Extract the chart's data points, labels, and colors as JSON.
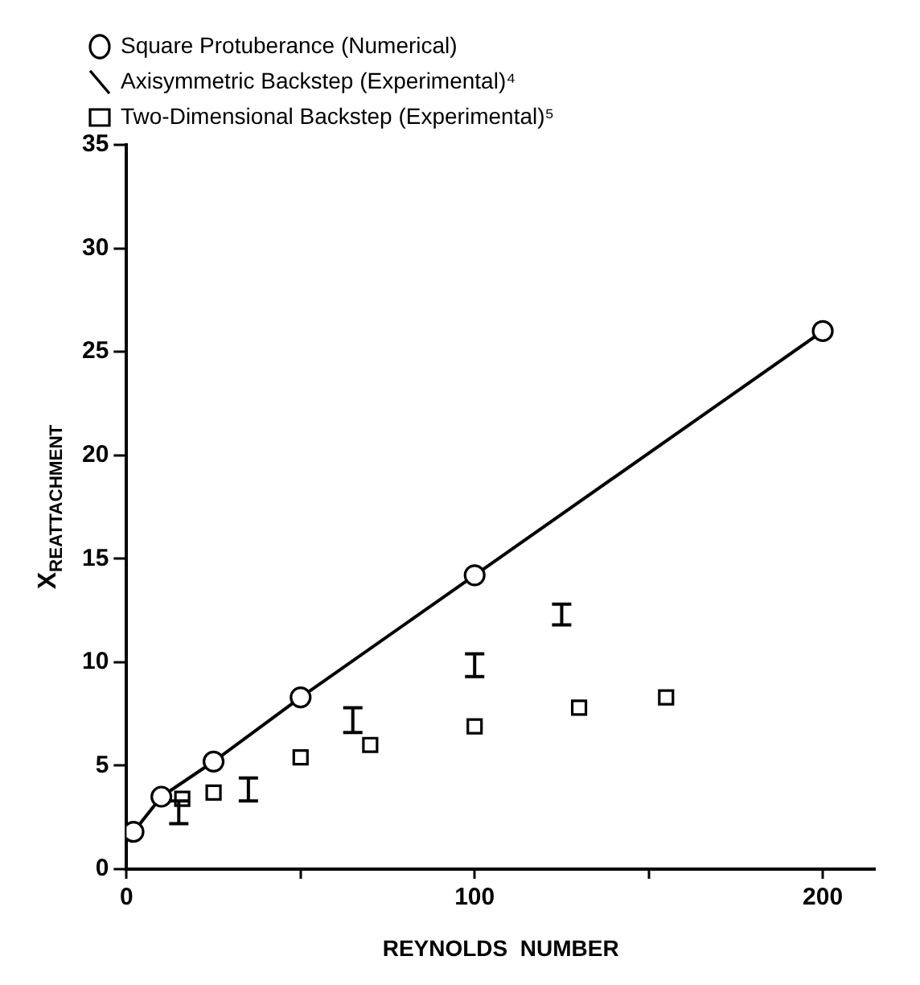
{
  "chart_data": {
    "type": "scatter",
    "xlabel": "REYNOLDS  NUMBER",
    "ylabel": "X$_{REATTACHMENT}$",
    "xlim": [
      0,
      215
    ],
    "xticks": [
      0,
      {
        "value": 50,
        "label": null
      },
      100,
      {
        "value": 150,
        "label": null
      },
      200
    ],
    "ylim": [
      0,
      35
    ],
    "yticks": [
      0,
      5,
      10,
      15,
      20,
      25,
      30,
      35
    ],
    "grid": false,
    "legend": "top left",
    "series": [
      {
        "name": "Square Protuberance (Numerical)",
        "type": "line",
        "marker": "circle",
        "color": "#000000",
        "x": [
          2,
          10,
          25,
          50,
          100,
          200
        ],
        "values": [
          1.8,
          3.5,
          5.2,
          8.3,
          14.2,
          26
        ]
      },
      {
        "name": "Axisymmetric Backstep (Experimental)⁴",
        "color": "#000000",
        "x": [
          15,
          35,
          65,
          100,
          125
        ],
        "values": [
          2.75,
          3.85,
          7.2,
          9.85,
          12.3
        ],
        "errors": [
          0.55,
          0.55,
          0.6,
          0.55,
          0.5
        ]
      },
      {
        "name": "Two-Dimensional Backstep (Experimental)⁵",
        "marker": "square",
        "color": "#000000",
        "x": [
          16,
          25,
          50,
          70,
          100,
          130,
          155
        ],
        "values": [
          3.4,
          3.7,
          5.4,
          6.0,
          6.9,
          7.8,
          8.3
        ]
      }
    ]
  }
}
